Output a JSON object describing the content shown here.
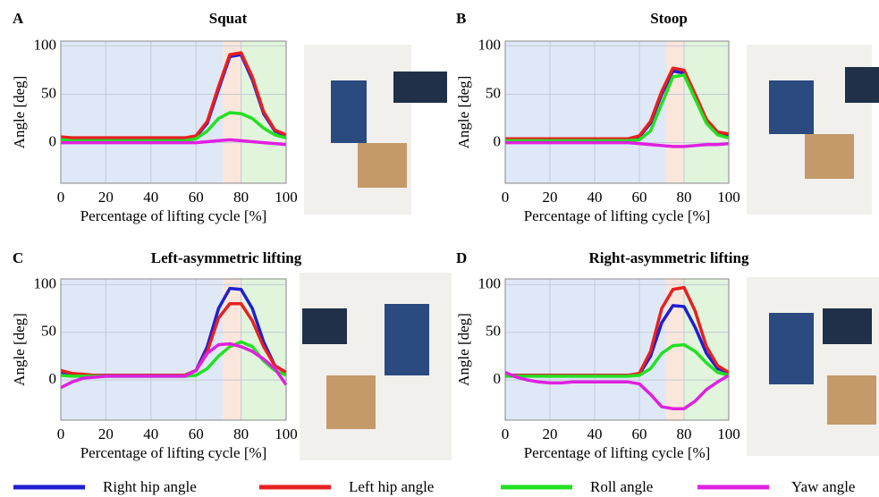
{
  "chart_data": [
    {
      "type": "line",
      "panel": "A",
      "title": "Squat",
      "xlabel": "Percentage of lifting cycle [%]",
      "ylabel": "Angle [deg]",
      "x": [
        0,
        5,
        10,
        15,
        20,
        25,
        30,
        35,
        40,
        45,
        50,
        55,
        60,
        65,
        70,
        75,
        80,
        85,
        90,
        95,
        100
      ],
      "xlim": [
        0,
        100
      ],
      "xticks": [
        0,
        20,
        40,
        60,
        80,
        100
      ],
      "ylim": [
        -42,
        105
      ],
      "yticks": [
        0,
        50,
        100
      ],
      "grid": true,
      "shaded_regions": [
        {
          "from": 0,
          "to": 72,
          "color": "#dfe8f6"
        },
        {
          "from": 72,
          "to": 80,
          "color": "#fbe6dc"
        },
        {
          "from": 80,
          "to": 100,
          "color": "#e0f5dc"
        }
      ],
      "series": [
        {
          "name": "Right hip angle",
          "color": "#1f1fd0",
          "values": [
            5,
            4,
            4,
            4,
            4,
            4,
            4,
            4,
            4,
            4,
            4,
            4,
            6,
            20,
            55,
            89,
            91,
            65,
            30,
            12,
            7
          ]
        },
        {
          "name": "Left hip angle",
          "color": "#e82020",
          "values": [
            6,
            5,
            5,
            5,
            5,
            5,
            5,
            5,
            5,
            5,
            5,
            5,
            7,
            22,
            58,
            91,
            93,
            68,
            32,
            13,
            8
          ]
        },
        {
          "name": "Roll angle",
          "color": "#22e022",
          "values": [
            3,
            2,
            2,
            2,
            2,
            2,
            2,
            2,
            2,
            2,
            2,
            2,
            4,
            12,
            25,
            31,
            30,
            25,
            15,
            8,
            5
          ]
        },
        {
          "name": "Yaw angle",
          "color": "#e020e0",
          "values": [
            0,
            0,
            0,
            0,
            0,
            0,
            0,
            0,
            0,
            0,
            0,
            0,
            0,
            1,
            2,
            3,
            2,
            1,
            0,
            -1,
            -2
          ]
        }
      ]
    },
    {
      "type": "line",
      "panel": "B",
      "title": "Stoop",
      "xlabel": "Percentage of lifting cycle [%]",
      "ylabel": "Angle [deg]",
      "x": [
        0,
        5,
        10,
        15,
        20,
        25,
        30,
        35,
        40,
        45,
        50,
        55,
        60,
        65,
        70,
        75,
        80,
        85,
        90,
        95,
        100
      ],
      "xlim": [
        0,
        100
      ],
      "xticks": [
        0,
        20,
        40,
        60,
        80,
        100
      ],
      "ylim": [
        -42,
        105
      ],
      "yticks": [
        0,
        50,
        100
      ],
      "grid": true,
      "shaded_regions": [
        {
          "from": 0,
          "to": 72,
          "color": "#dfe8f6"
        },
        {
          "from": 72,
          "to": 80,
          "color": "#fbe6dc"
        },
        {
          "from": 80,
          "to": 100,
          "color": "#e0f5dc"
        }
      ],
      "series": [
        {
          "name": "Right hip angle",
          "color": "#1f1fd0",
          "values": [
            3,
            3,
            3,
            3,
            3,
            3,
            3,
            3,
            3,
            3,
            3,
            3,
            6,
            20,
            50,
            74,
            72,
            48,
            22,
            10,
            8
          ]
        },
        {
          "name": "Left hip angle",
          "color": "#e82020",
          "values": [
            4,
            4,
            4,
            4,
            4,
            4,
            4,
            4,
            4,
            4,
            4,
            4,
            7,
            22,
            53,
            77,
            75,
            50,
            24,
            11,
            9
          ]
        },
        {
          "name": "Roll angle",
          "color": "#22e022",
          "values": [
            2,
            2,
            2,
            2,
            2,
            2,
            2,
            2,
            2,
            2,
            2,
            2,
            3,
            12,
            40,
            68,
            70,
            45,
            20,
            8,
            5
          ]
        },
        {
          "name": "Yaw angle",
          "color": "#e020e0",
          "values": [
            0,
            0,
            0,
            0,
            0,
            0,
            0,
            0,
            0,
            0,
            0,
            0,
            -1,
            -2,
            -3,
            -4,
            -4,
            -3,
            -2,
            -2,
            -1
          ]
        }
      ]
    },
    {
      "type": "line",
      "panel": "C",
      "title": "Left-asymmetric lifting",
      "xlabel": "Percentage of lifting cycle [%]",
      "ylabel": "Angle [deg]",
      "x": [
        0,
        5,
        10,
        15,
        20,
        25,
        30,
        35,
        40,
        45,
        50,
        55,
        60,
        65,
        70,
        75,
        80,
        85,
        90,
        95,
        100
      ],
      "xlim": [
        0,
        100
      ],
      "xticks": [
        0,
        20,
        40,
        60,
        80,
        100
      ],
      "ylim": [
        -42,
        106
      ],
      "yticks": [
        0,
        50,
        100
      ],
      "grid": true,
      "shaded_regions": [
        {
          "from": 0,
          "to": 72,
          "color": "#dfe8f6"
        },
        {
          "from": 72,
          "to": 80,
          "color": "#fbe6dc"
        },
        {
          "from": 80,
          "to": 100,
          "color": "#e0f5dc"
        }
      ],
      "series": [
        {
          "name": "Right hip angle",
          "color": "#1f1fd0",
          "values": [
            8,
            6,
            5,
            5,
            5,
            5,
            5,
            5,
            5,
            5,
            5,
            5,
            10,
            35,
            75,
            96,
            95,
            75,
            40,
            15,
            8
          ]
        },
        {
          "name": "Left hip angle",
          "color": "#e82020",
          "values": [
            10,
            7,
            6,
            5,
            5,
            5,
            5,
            5,
            5,
            5,
            5,
            5,
            10,
            30,
            65,
            80,
            80,
            62,
            35,
            15,
            8
          ]
        },
        {
          "name": "Roll angle",
          "color": "#22e022",
          "values": [
            5,
            4,
            4,
            4,
            4,
            4,
            4,
            4,
            4,
            4,
            4,
            4,
            5,
            12,
            25,
            35,
            40,
            35,
            20,
            10,
            5
          ]
        },
        {
          "name": "Yaw angle",
          "color": "#e020e0",
          "values": [
            -8,
            -2,
            2,
            3,
            4,
            4,
            4,
            4,
            4,
            4,
            4,
            4,
            10,
            28,
            37,
            38,
            35,
            30,
            22,
            12,
            -5
          ]
        }
      ]
    },
    {
      "type": "line",
      "panel": "D",
      "title": "Right-asymmetric lifting",
      "xlabel": "Percentage of lifting cycle [%]",
      "ylabel": "Angle [deg]",
      "x": [
        0,
        5,
        10,
        15,
        20,
        25,
        30,
        35,
        40,
        45,
        50,
        55,
        60,
        65,
        70,
        75,
        80,
        85,
        90,
        95,
        100
      ],
      "xlim": [
        0,
        100
      ],
      "xticks": [
        0,
        20,
        40,
        60,
        80,
        100
      ],
      "ylim": [
        -42,
        106
      ],
      "yticks": [
        0,
        50,
        100
      ],
      "grid": true,
      "shaded_regions": [
        {
          "from": 0,
          "to": 72,
          "color": "#dfe8f6"
        },
        {
          "from": 72,
          "to": 80,
          "color": "#fbe6dc"
        },
        {
          "from": 80,
          "to": 100,
          "color": "#e0f5dc"
        }
      ],
      "series": [
        {
          "name": "Right hip angle",
          "color": "#1f1fd0",
          "values": [
            5,
            5,
            5,
            5,
            5,
            5,
            5,
            5,
            5,
            5,
            5,
            5,
            6,
            25,
            60,
            78,
            77,
            55,
            28,
            12,
            8
          ]
        },
        {
          "name": "Left hip angle",
          "color": "#e82020",
          "values": [
            5,
            5,
            5,
            5,
            5,
            5,
            5,
            5,
            5,
            5,
            5,
            5,
            7,
            30,
            75,
            95,
            97,
            72,
            35,
            15,
            8
          ]
        },
        {
          "name": "Roll angle",
          "color": "#22e022",
          "values": [
            4,
            4,
            4,
            4,
            4,
            4,
            4,
            4,
            4,
            4,
            4,
            4,
            5,
            12,
            28,
            36,
            37,
            30,
            18,
            8,
            5
          ]
        },
        {
          "name": "Yaw angle",
          "color": "#e020e0",
          "values": [
            8,
            3,
            0,
            -2,
            -3,
            -3,
            -2,
            -2,
            -2,
            -2,
            -2,
            -2,
            -4,
            -15,
            -28,
            -30,
            -30,
            -22,
            -10,
            -2,
            5
          ]
        }
      ]
    }
  ]
}
